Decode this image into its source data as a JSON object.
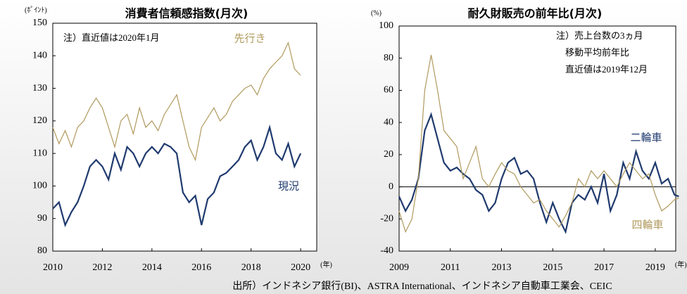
{
  "chart_data": [
    {
      "type": "line",
      "title": "消費者信頼感指数(月次)",
      "y_unit": "(ﾎﾟｲﾝﾄ)",
      "x_unit": "(年)",
      "annotations": [
        "注）直近値は2020年1月"
      ],
      "x": [
        2010,
        2010.25,
        2010.5,
        2010.75,
        2011,
        2011.25,
        2011.5,
        2011.75,
        2012,
        2012.25,
        2012.5,
        2012.75,
        2013,
        2013.25,
        2013.5,
        2013.75,
        2014,
        2014.25,
        2014.5,
        2014.75,
        2015,
        2015.25,
        2015.5,
        2015.75,
        2016,
        2016.25,
        2016.5,
        2016.75,
        2017,
        2017.25,
        2017.5,
        2017.75,
        2018,
        2018.25,
        2018.5,
        2018.75,
        2019,
        2019.25,
        2019.5,
        2019.75,
        2020
      ],
      "series": [
        {
          "name": "先行き",
          "color": "#b09a5e",
          "values": [
            118,
            113,
            117,
            112,
            118,
            120,
            124,
            127,
            124,
            118,
            112,
            120,
            122,
            116,
            124,
            118,
            120,
            117,
            122,
            125,
            128,
            120,
            112,
            108,
            118,
            121,
            124,
            120,
            122,
            126,
            128,
            130,
            131,
            128,
            133,
            136,
            138,
            140,
            144,
            136,
            134
          ]
        },
        {
          "name": "現況",
          "color": "#1f3a6e",
          "values": [
            93,
            95,
            88,
            92,
            95,
            100,
            106,
            108,
            106,
            102,
            110,
            105,
            112,
            110,
            106,
            110,
            112,
            110,
            113,
            112,
            110,
            98,
            95,
            97,
            88,
            96,
            98,
            103,
            104,
            106,
            108,
            112,
            114,
            108,
            112,
            118,
            110,
            108,
            113,
            106,
            110
          ]
        }
      ],
      "xlim": [
        2010,
        2020.65
      ],
      "xticks": [
        2010,
        2012,
        2014,
        2016,
        2018,
        2020
      ],
      "ylim": [
        80,
        150
      ],
      "yticks": [
        80,
        90,
        100,
        110,
        120,
        130,
        140,
        150
      ]
    },
    {
      "type": "line",
      "title": "耐久財販売の前年比(月次)",
      "y_unit": "(%)",
      "x_unit": "(年)",
      "annotations": [
        "注）売上台数の3ヵ月",
        "移動平均前年比",
        "直近値は2019年12月"
      ],
      "x": [
        2009,
        2009.25,
        2009.5,
        2009.75,
        2010,
        2010.25,
        2010.5,
        2010.75,
        2011,
        2011.25,
        2011.5,
        2011.75,
        2012,
        2012.25,
        2012.5,
        2012.75,
        2013,
        2013.25,
        2013.5,
        2013.75,
        2014,
        2014.25,
        2014.5,
        2014.75,
        2015,
        2015.25,
        2015.5,
        2015.75,
        2016,
        2016.25,
        2016.5,
        2016.75,
        2017,
        2017.25,
        2017.5,
        2017.75,
        2018,
        2018.25,
        2018.5,
        2018.75,
        2019,
        2019.25,
        2019.5,
        2019.75,
        2019.92
      ],
      "series": [
        {
          "name": "二輪車",
          "color": "#1f3a6e",
          "values": [
            -6,
            -15,
            -8,
            5,
            35,
            45,
            30,
            15,
            10,
            12,
            8,
            5,
            -2,
            -5,
            -15,
            -10,
            5,
            15,
            18,
            8,
            10,
            5,
            -10,
            -22,
            -10,
            -20,
            -28,
            -10,
            -5,
            -8,
            0,
            -10,
            8,
            -15,
            -5,
            15,
            5,
            22,
            10,
            5,
            15,
            2,
            5,
            -5,
            -6
          ]
        },
        {
          "name": "四輪車",
          "color": "#b09a5e",
          "values": [
            -15,
            -28,
            -20,
            5,
            60,
            82,
            60,
            35,
            30,
            25,
            5,
            15,
            25,
            5,
            0,
            8,
            15,
            10,
            8,
            0,
            -5,
            -10,
            -8,
            -15,
            -20,
            -25,
            -18,
            -10,
            5,
            0,
            10,
            5,
            10,
            5,
            0,
            8,
            15,
            10,
            5,
            8,
            -5,
            -15,
            -12,
            -8,
            -7
          ]
        }
      ],
      "xlim": [
        2009,
        2019.8
      ],
      "xticks": [
        2009,
        2011,
        2013,
        2015,
        2017,
        2019
      ],
      "ylim": [
        -40,
        100
      ],
      "yticks": [
        -40,
        -20,
        0,
        20,
        40,
        60,
        80,
        100
      ],
      "zero_line": true
    }
  ],
  "source": "出所）インドネシア銀行(BI)、ASTRA International、インドネシア自動車工業会、CEIC"
}
